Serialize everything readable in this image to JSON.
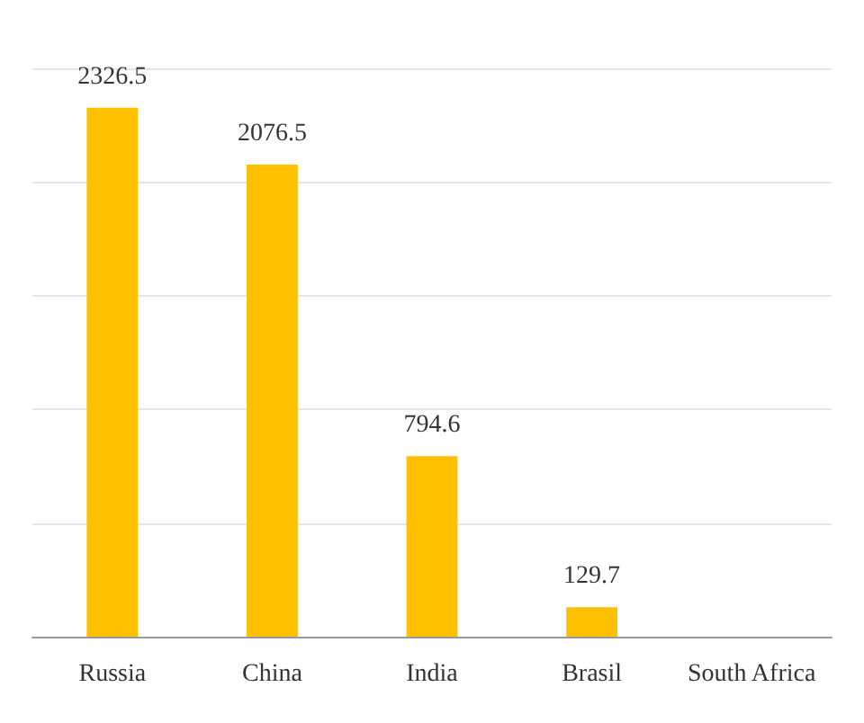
{
  "chart_data": {
    "type": "bar",
    "categories": [
      "Russia",
      "China",
      "India",
      "Brasil",
      "South Africa"
    ],
    "values": [
      2326.5,
      2076.5,
      794.6,
      129.7,
      null
    ],
    "color": "#ffc000",
    "data_labels": true,
    "ylim": [
      0,
      2500
    ],
    "yticks": [
      0,
      500,
      1000,
      1500,
      2000,
      2500
    ],
    "grid": "y",
    "tick_labels": "x"
  }
}
